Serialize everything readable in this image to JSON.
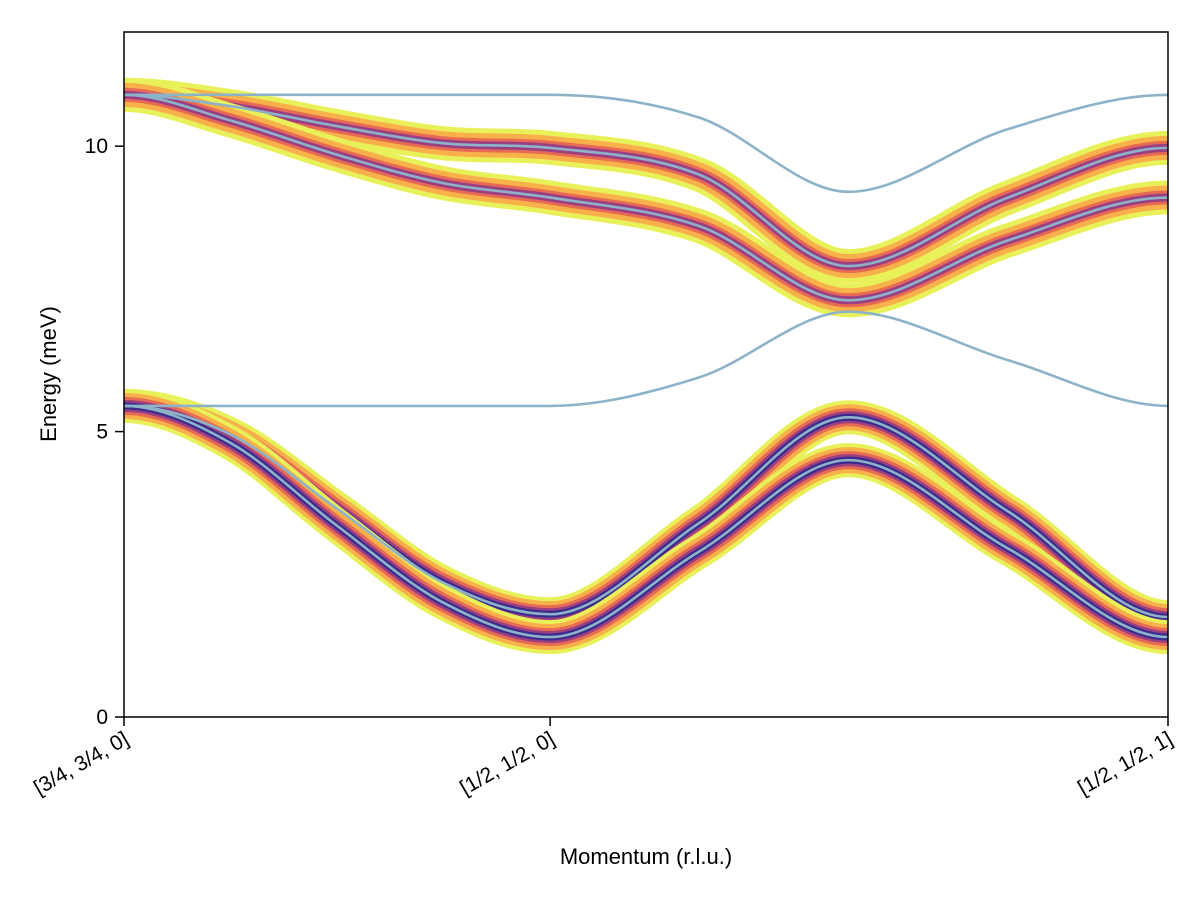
{
  "chart_data": {
    "type": "line",
    "xlabel": "Momentum (r.l.u.)",
    "ylabel": "Energy (meV)",
    "x_ticks": [
      "[3/4, 3/4, 0]",
      "[1/2, 1/2, 0]",
      "[1/2, 1/2, 1]"
    ],
    "x_tick_positions": [
      0,
      1,
      2.45
    ],
    "y_ticks": [
      "0",
      "5",
      "10"
    ],
    "y_tick_values": [
      0,
      5,
      10
    ],
    "xlim": [
      0,
      2.45
    ],
    "ylim": [
      0,
      12
    ],
    "grid": false,
    "legend": "none",
    "line_color": "#8db3c9",
    "intensity_colormap": [
      "#e9f15a",
      "#f7b04a",
      "#e76a55",
      "#9a3f82",
      "#3c2a8c"
    ],
    "series": [
      {
        "x": [
          0,
          0.25,
          0.5,
          0.75,
          1.0,
          1.35,
          1.7,
          2.075,
          2.45
        ],
        "y": [
          10.9,
          10.9,
          10.9,
          10.9,
          10.9,
          10.5,
          9.2,
          10.3,
          10.9
        ],
        "intensity": 0
      },
      {
        "x": [
          0,
          0.25,
          0.5,
          0.75,
          1.0,
          1.35,
          1.7,
          2.075,
          2.45
        ],
        "y": [
          10.9,
          10.7,
          10.35,
          10.05,
          9.97,
          9.5,
          7.9,
          9.1,
          9.97
        ],
        "intensity": 0.45
      },
      {
        "x": [
          0,
          0.25,
          0.5,
          0.75,
          1.0,
          1.35,
          1.7,
          2.075,
          2.45
        ],
        "y": [
          10.9,
          10.45,
          9.85,
          9.35,
          9.1,
          8.6,
          7.3,
          8.35,
          9.1
        ],
        "intensity": 0.45
      },
      {
        "x": [
          0,
          0.25,
          0.5,
          0.75,
          1.0,
          1.35,
          1.7,
          2.075,
          2.45
        ],
        "y": [
          5.45,
          5.45,
          5.45,
          5.45,
          5.45,
          5.95,
          7.1,
          6.25,
          5.45
        ],
        "intensity": 0
      },
      {
        "x": [
          0,
          0.25,
          0.5,
          0.75,
          1.0,
          1.35,
          1.7,
          2.075,
          2.45
        ],
        "y": [
          5.45,
          4.95,
          3.65,
          2.35,
          1.8,
          3.4,
          5.25,
          3.6,
          1.75
        ],
        "intensity": 0.85
      },
      {
        "x": [
          0,
          0.25,
          0.5,
          0.75,
          1.0,
          1.35,
          1.7,
          2.075,
          2.45
        ],
        "y": [
          5.45,
          4.8,
          3.35,
          2.0,
          1.4,
          2.9,
          4.5,
          2.95,
          1.4
        ],
        "intensity": 0.85
      }
    ]
  }
}
